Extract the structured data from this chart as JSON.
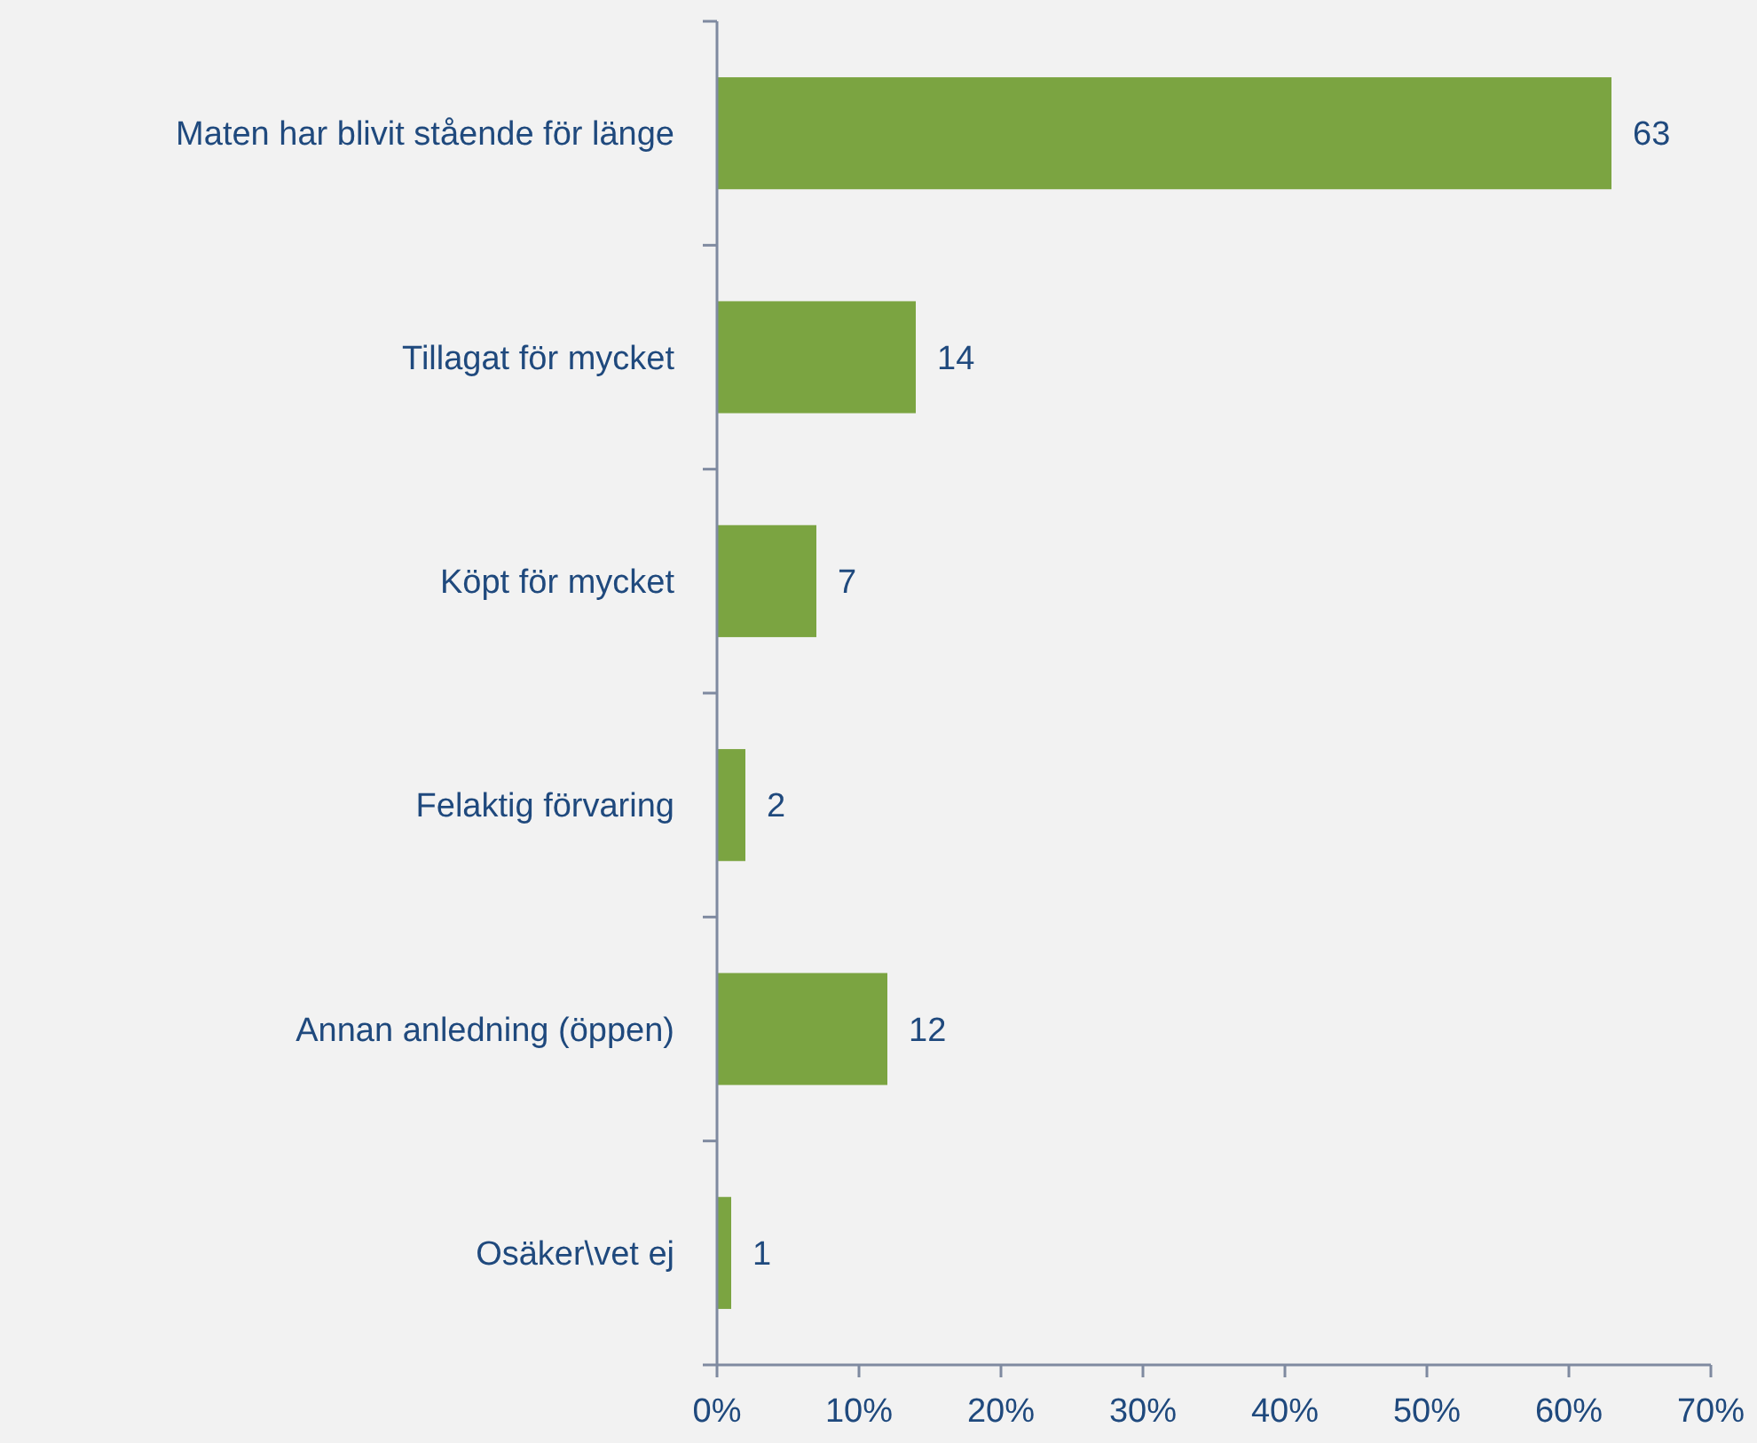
{
  "chart_data": {
    "type": "bar",
    "orientation": "horizontal",
    "categories": [
      "Maten har blivit stående för länge",
      "Tillagat för mycket",
      "Köpt för mycket",
      "Felaktig förvaring",
      "Annan anledning (öppen)",
      "Osäker\\vet ej"
    ],
    "values": [
      63,
      14,
      7,
      2,
      12,
      1
    ],
    "color": "#7ba441",
    "xlim": [
      0,
      70
    ],
    "xticks": [
      {
        "value": 0,
        "label": "0%"
      },
      {
        "value": 10,
        "label": "10%"
      },
      {
        "value": 20,
        "label": "20%"
      },
      {
        "value": 30,
        "label": "30%"
      },
      {
        "value": 40,
        "label": "40%"
      },
      {
        "value": 50,
        "label": "50%"
      },
      {
        "value": 60,
        "label": "60%"
      },
      {
        "value": 70,
        "label": "70%"
      }
    ],
    "data_labels": true
  }
}
